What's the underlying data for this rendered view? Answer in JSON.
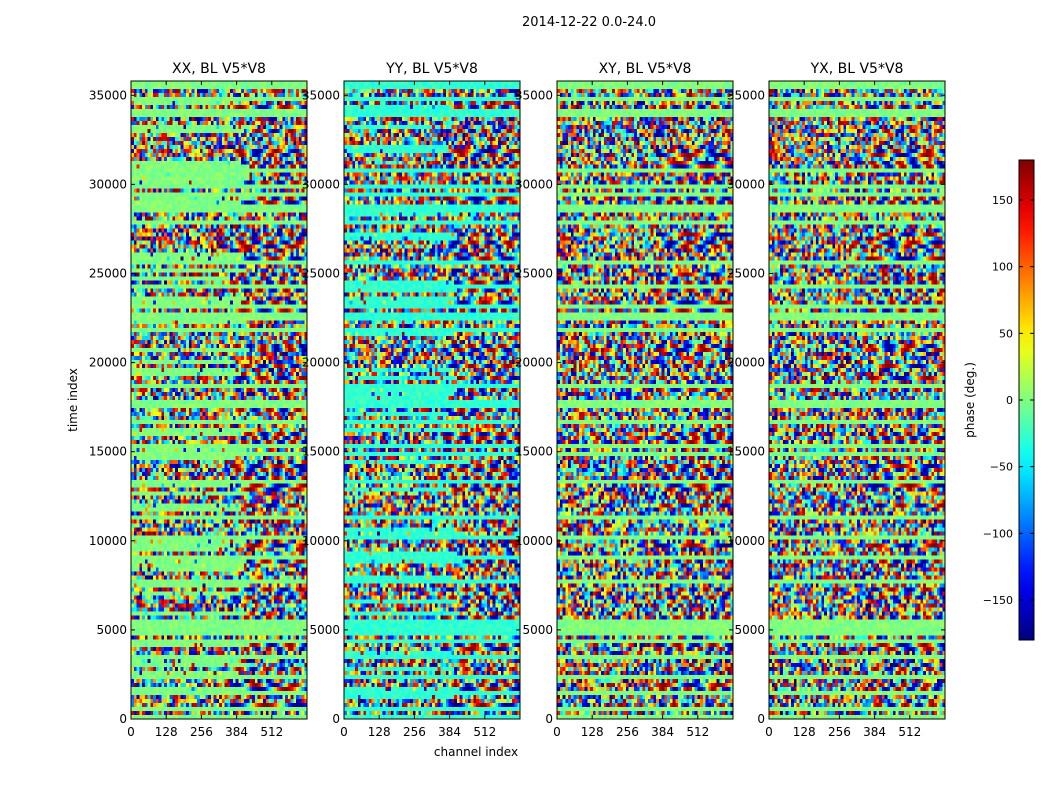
{
  "figure": {
    "suptitle": "2014-12-22 0.0-24.0"
  },
  "chart_data": {
    "type": "heatmap",
    "xlabel": "channel index",
    "ylabel": "time index",
    "xlim": [
      0,
      640
    ],
    "ylim": [
      0,
      35800
    ],
    "xticks": [
      0,
      128,
      256,
      384,
      512
    ],
    "yticks": [
      0,
      5000,
      10000,
      15000,
      20000,
      25000,
      30000,
      35000
    ],
    "panels": [
      {
        "title": "XX, BL V5*V8"
      },
      {
        "title": "YY, BL V5*V8"
      },
      {
        "title": "XY, BL V5*V8"
      },
      {
        "title": "YX, BL V5*V8"
      }
    ],
    "colorbar": {
      "label": "phase (deg.)",
      "range": [
        -180,
        180
      ],
      "ticks": [
        -150,
        -100,
        -50,
        0,
        50,
        100,
        150
      ],
      "colormap": "jet"
    }
  }
}
